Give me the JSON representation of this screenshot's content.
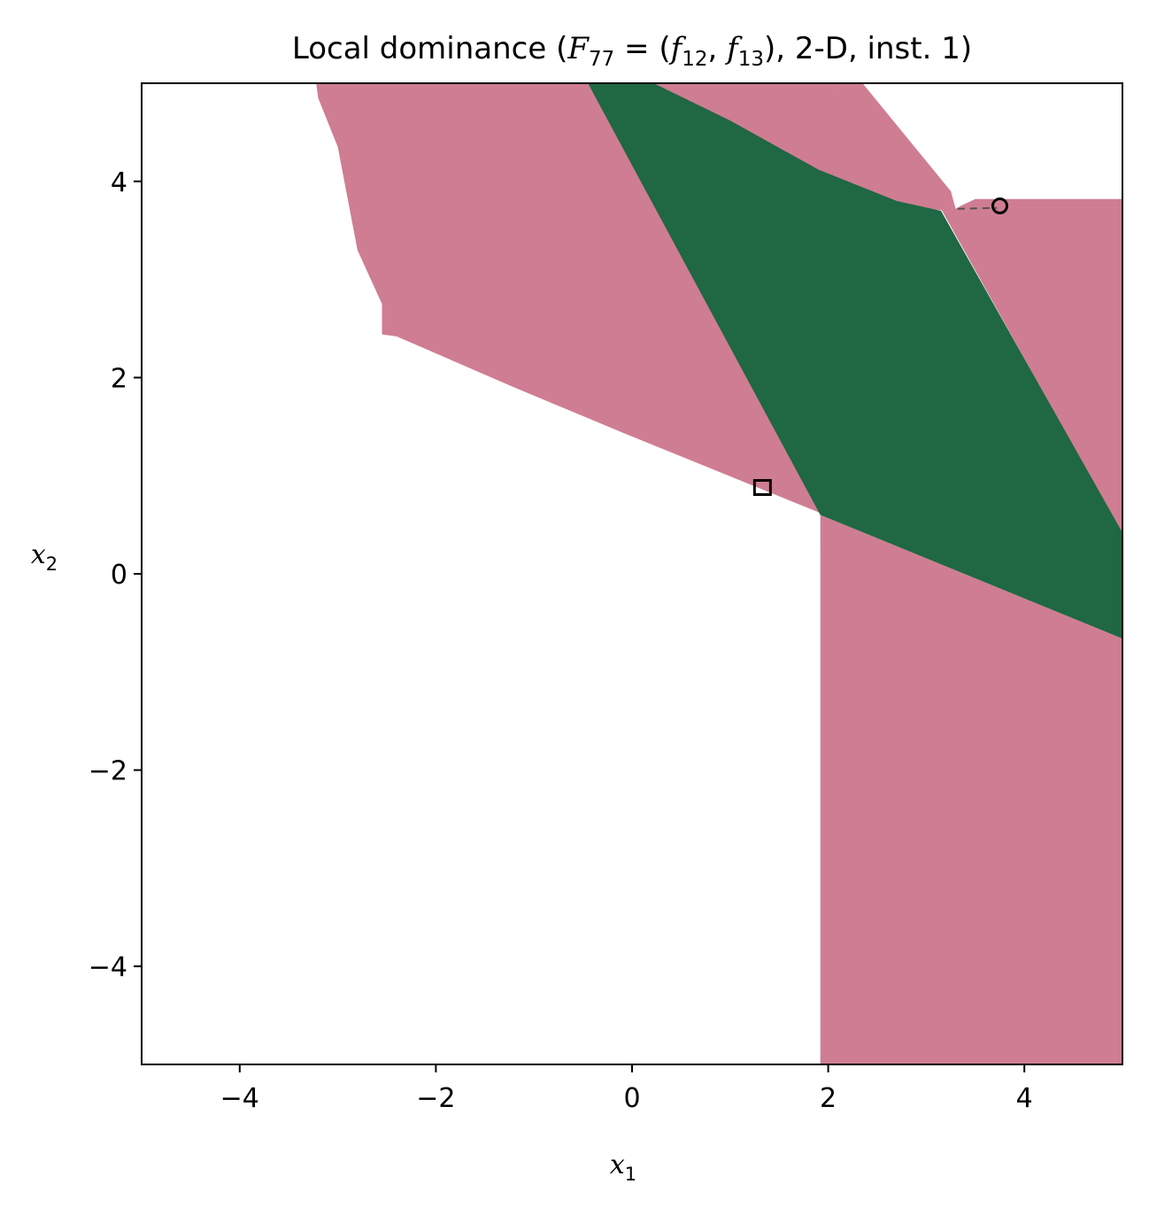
{
  "chart_data": {
    "type": "heatmap",
    "title": {
      "prefix": "Local dominance (",
      "F": "F",
      "F_sub": "77",
      "eq_open": " = (",
      "f1": "f",
      "f1_sub": "12",
      "comma": ", ",
      "f2": "f",
      "f2_sub": "13",
      "suffix": "), 2-D, inst. 1)"
    },
    "xlabel": {
      "main": "x",
      "sub": "1"
    },
    "ylabel": {
      "main": "x",
      "sub": "2"
    },
    "xlim": [
      -5,
      5
    ],
    "ylim": [
      -5,
      5
    ],
    "xticks": [
      -4,
      -2,
      0,
      2,
      4
    ],
    "yticks": [
      -4,
      -2,
      0,
      2,
      4
    ],
    "xtick_labels": [
      "−4",
      "−2",
      "0",
      "2",
      "4"
    ],
    "ytick_labels": [
      "−4",
      "−2",
      "0",
      "2",
      "4"
    ],
    "grid": false,
    "colors": {
      "pink": "#cf7d92",
      "green": "#206743",
      "background": "#ffffff"
    },
    "regions": [
      {
        "color": "pink",
        "polygon": [
          [
            -3.22,
            5
          ],
          [
            -0.45,
            5
          ],
          [
            1.98,
            0.6
          ],
          [
            1.98,
            0.6
          ],
          [
            1.92,
            0.62
          ],
          [
            -0.1,
            1.44
          ],
          [
            -1.2,
            1.9
          ],
          [
            -2.4,
            2.42
          ],
          [
            -2.55,
            2.44
          ],
          [
            -2.55,
            2.75
          ],
          [
            -2.8,
            3.3
          ],
          [
            -3.0,
            4.35
          ],
          [
            -3.2,
            4.85
          ]
        ]
      },
      {
        "color": "pink",
        "polygon": [
          [
            1.92,
            0.6
          ],
          [
            5,
            -0.66
          ],
          [
            5,
            -5
          ],
          [
            1.92,
            -5
          ]
        ]
      },
      {
        "color": "pink",
        "polygon": [
          [
            0.2,
            5
          ],
          [
            2.0,
            5
          ],
          [
            3.22,
            3.7
          ],
          [
            2.4,
            3.78
          ],
          [
            1.2,
            4.45
          ]
        ]
      },
      {
        "color": "pink",
        "polygon": [
          [
            2.0,
            5
          ],
          [
            2.35,
            5
          ],
          [
            3.25,
            3.9
          ],
          [
            3.3,
            3.72
          ],
          [
            3.35,
            3.75
          ],
          [
            3.5,
            3.82
          ],
          [
            5,
            3.82
          ],
          [
            5,
            0.4
          ],
          [
            3.15,
            3.72
          ]
        ]
      },
      {
        "color": "green",
        "polygon": [
          [
            -0.45,
            5
          ],
          [
            0.22,
            5
          ],
          [
            1.0,
            4.62
          ],
          [
            1.9,
            4.12
          ],
          [
            2.7,
            3.8
          ],
          [
            3.15,
            3.7
          ],
          [
            5,
            0.42
          ],
          [
            5,
            -0.66
          ],
          [
            1.92,
            0.6
          ]
        ]
      }
    ],
    "markers": [
      {
        "shape": "circle",
        "x": 3.75,
        "y": 3.75
      },
      {
        "shape": "square",
        "x": 1.33,
        "y": 0.88
      }
    ],
    "annotations": [
      {
        "type": "dashed-segment",
        "x": [
          3.32,
          3.72
        ],
        "y": [
          3.72,
          3.73
        ]
      }
    ]
  }
}
